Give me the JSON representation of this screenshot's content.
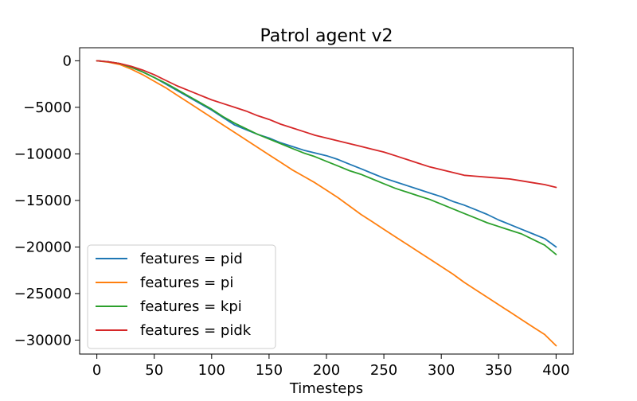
{
  "chart_data": {
    "type": "line",
    "title": "Patrol agent v2",
    "xlabel": "Timesteps",
    "ylabel": "",
    "xlim": [
      -15,
      415
    ],
    "ylim": [
      -31500,
      1400
    ],
    "xticks": [
      0,
      50,
      100,
      150,
      200,
      250,
      300,
      350,
      400
    ],
    "yticks": [
      0,
      -5000,
      -10000,
      -15000,
      -20000,
      -25000,
      -30000
    ],
    "ytick_labels": [
      "0",
      "−5000",
      "−10000",
      "−15000",
      "−20000",
      "−25000",
      "−30000"
    ],
    "grid": false,
    "legend_position": "lower-left",
    "series": [
      {
        "name": "features = pid",
        "color": "#1f77b4",
        "x": [
          0,
          10,
          20,
          30,
          40,
          50,
          60,
          70,
          80,
          90,
          100,
          110,
          120,
          130,
          140,
          150,
          160,
          170,
          180,
          190,
          200,
          210,
          220,
          230,
          240,
          250,
          260,
          270,
          280,
          290,
          300,
          310,
          320,
          330,
          340,
          350,
          360,
          370,
          380,
          390,
          400
        ],
        "y": [
          0,
          -100,
          -300,
          -700,
          -1200,
          -1800,
          -2500,
          -3200,
          -3900,
          -4600,
          -5300,
          -6100,
          -6900,
          -7400,
          -7900,
          -8300,
          -8800,
          -9200,
          -9600,
          -9900,
          -10200,
          -10600,
          -11100,
          -11600,
          -12100,
          -12600,
          -13000,
          -13400,
          -13800,
          -14200,
          -14600,
          -15100,
          -15500,
          -16000,
          -16500,
          -17100,
          -17600,
          -18100,
          -18600,
          -19100,
          -20000
        ]
      },
      {
        "name": "features = pi",
        "color": "#ff7f0e",
        "x": [
          0,
          10,
          20,
          30,
          40,
          50,
          60,
          70,
          80,
          90,
          100,
          110,
          120,
          130,
          140,
          150,
          160,
          170,
          180,
          190,
          200,
          210,
          220,
          230,
          240,
          250,
          260,
          270,
          280,
          290,
          300,
          310,
          320,
          330,
          340,
          350,
          360,
          370,
          380,
          390,
          400
        ],
        "y": [
          0,
          -150,
          -400,
          -900,
          -1500,
          -2200,
          -2900,
          -3700,
          -4500,
          -5300,
          -6100,
          -6900,
          -7700,
          -8500,
          -9300,
          -10100,
          -10900,
          -11700,
          -12400,
          -13100,
          -13900,
          -14700,
          -15600,
          -16500,
          -17300,
          -18100,
          -18900,
          -19700,
          -20500,
          -21300,
          -22100,
          -22900,
          -23800,
          -24600,
          -25400,
          -26200,
          -27000,
          -27800,
          -28600,
          -29400,
          -30600
        ]
      },
      {
        "name": "features = kpi",
        "color": "#2ca02c",
        "x": [
          0,
          10,
          20,
          30,
          40,
          50,
          60,
          70,
          80,
          90,
          100,
          110,
          120,
          130,
          140,
          150,
          160,
          170,
          180,
          190,
          200,
          210,
          220,
          230,
          240,
          250,
          260,
          270,
          280,
          290,
          300,
          310,
          320,
          330,
          340,
          350,
          360,
          370,
          380,
          390,
          400
        ],
        "y": [
          0,
          -100,
          -300,
          -700,
          -1200,
          -1800,
          -2400,
          -3100,
          -3800,
          -4500,
          -5200,
          -6000,
          -6700,
          -7300,
          -7900,
          -8400,
          -8900,
          -9400,
          -9900,
          -10300,
          -10800,
          -11300,
          -11800,
          -12200,
          -12700,
          -13200,
          -13700,
          -14100,
          -14500,
          -14900,
          -15400,
          -15900,
          -16400,
          -16900,
          -17400,
          -17800,
          -18200,
          -18600,
          -19200,
          -19800,
          -20800
        ]
      },
      {
        "name": "features = pidk",
        "color": "#d62728",
        "x": [
          0,
          10,
          20,
          30,
          40,
          50,
          60,
          70,
          80,
          90,
          100,
          110,
          120,
          130,
          140,
          150,
          160,
          170,
          180,
          190,
          200,
          210,
          220,
          230,
          240,
          250,
          260,
          270,
          280,
          290,
          300,
          310,
          320,
          330,
          340,
          350,
          360,
          370,
          380,
          390,
          400
        ],
        "y": [
          0,
          -100,
          -300,
          -600,
          -1000,
          -1500,
          -2100,
          -2700,
          -3200,
          -3700,
          -4200,
          -4600,
          -5000,
          -5400,
          -5900,
          -6300,
          -6800,
          -7200,
          -7600,
          -8000,
          -8300,
          -8600,
          -8900,
          -9200,
          -9500,
          -9800,
          -10200,
          -10600,
          -11000,
          -11400,
          -11700,
          -12000,
          -12300,
          -12400,
          -12500,
          -12600,
          -12700,
          -12900,
          -13100,
          -13300,
          -13600
        ]
      }
    ]
  }
}
